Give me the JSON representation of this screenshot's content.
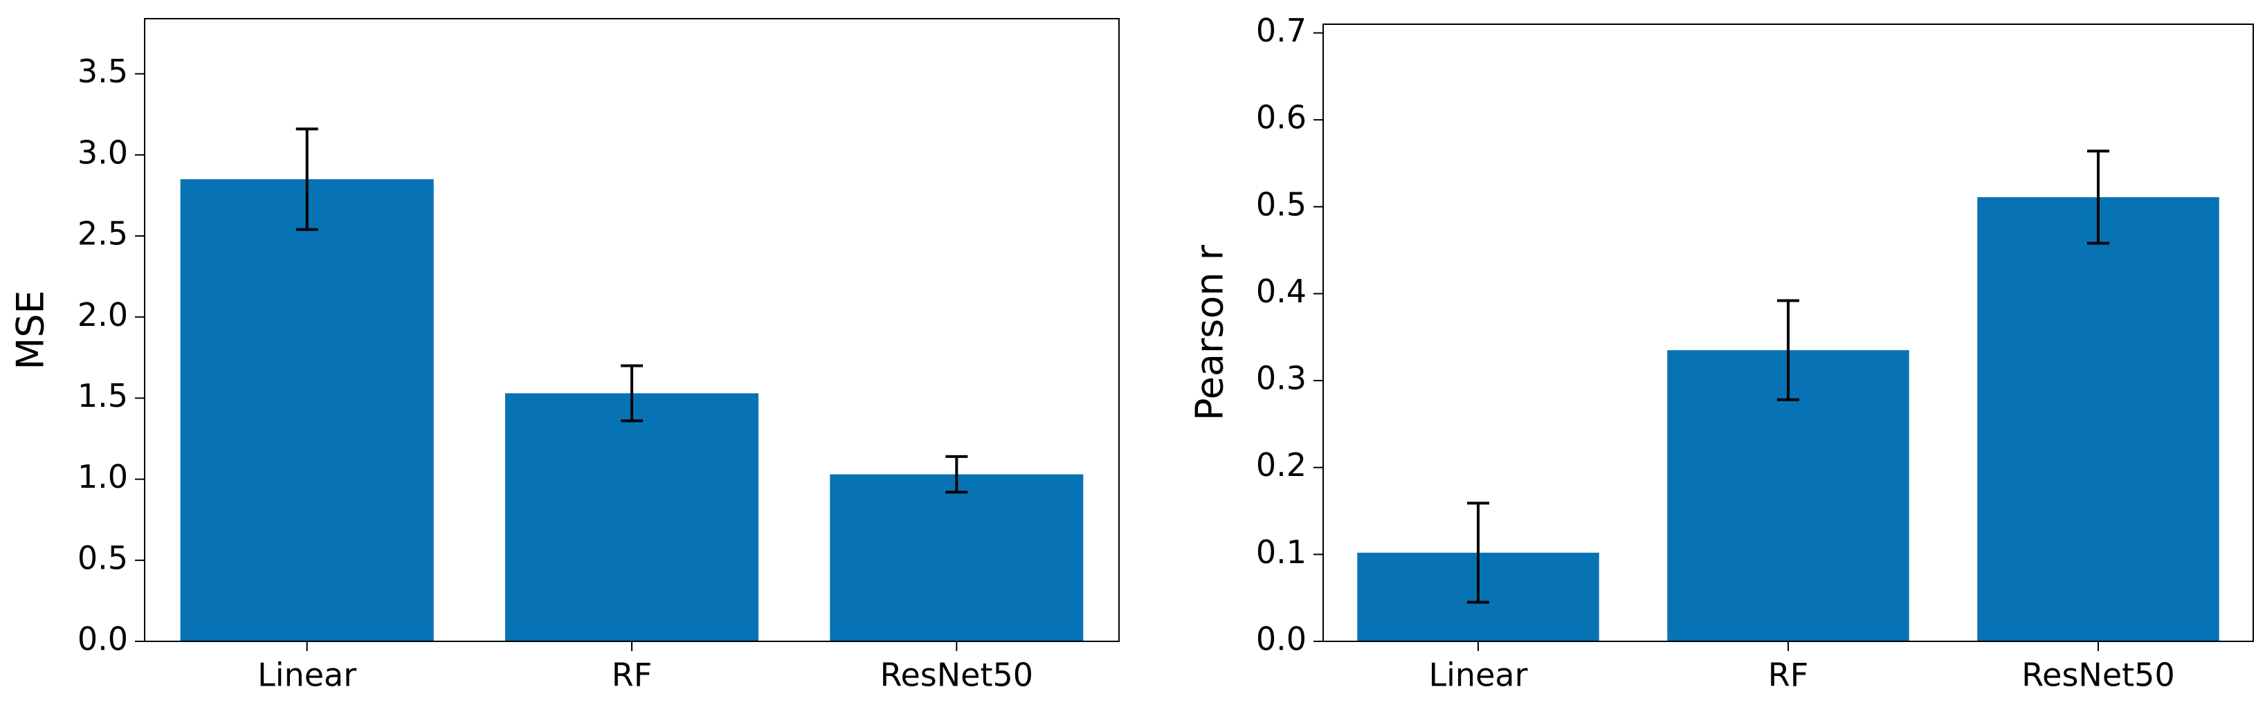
{
  "chart_data": [
    {
      "type": "bar",
      "ylabel": "MSE",
      "categories": [
        "Linear",
        "RF",
        "ResNet50"
      ],
      "values": [
        2.85,
        1.53,
        1.03
      ],
      "errors": [
        0.31,
        0.17,
        0.11
      ],
      "color": "#0773b5",
      "ylim": [
        0,
        3.84
      ],
      "yticks": [
        {
          "value": 0,
          "label": "0.0"
        },
        0.5,
        {
          "value": 1,
          "label": "1.0"
        },
        1.5,
        {
          "value": 2,
          "label": "2.0"
        },
        2.5,
        {
          "value": 3,
          "label": "3.0"
        },
        3.5
      ]
    },
    {
      "type": "bar",
      "ylabel": "Pearson r",
      "categories": [
        "Linear",
        "RF",
        "ResNet50"
      ],
      "values": [
        0.102,
        0.335,
        0.511
      ],
      "errors": [
        0.057,
        0.057,
        0.053
      ],
      "color": "#0773b5",
      "ylim": [
        0,
        0.71
      ],
      "yticks": [
        {
          "value": 0,
          "label": "0.0"
        },
        0.1,
        0.2,
        0.3,
        0.4,
        0.5,
        0.6,
        0.7
      ]
    }
  ]
}
